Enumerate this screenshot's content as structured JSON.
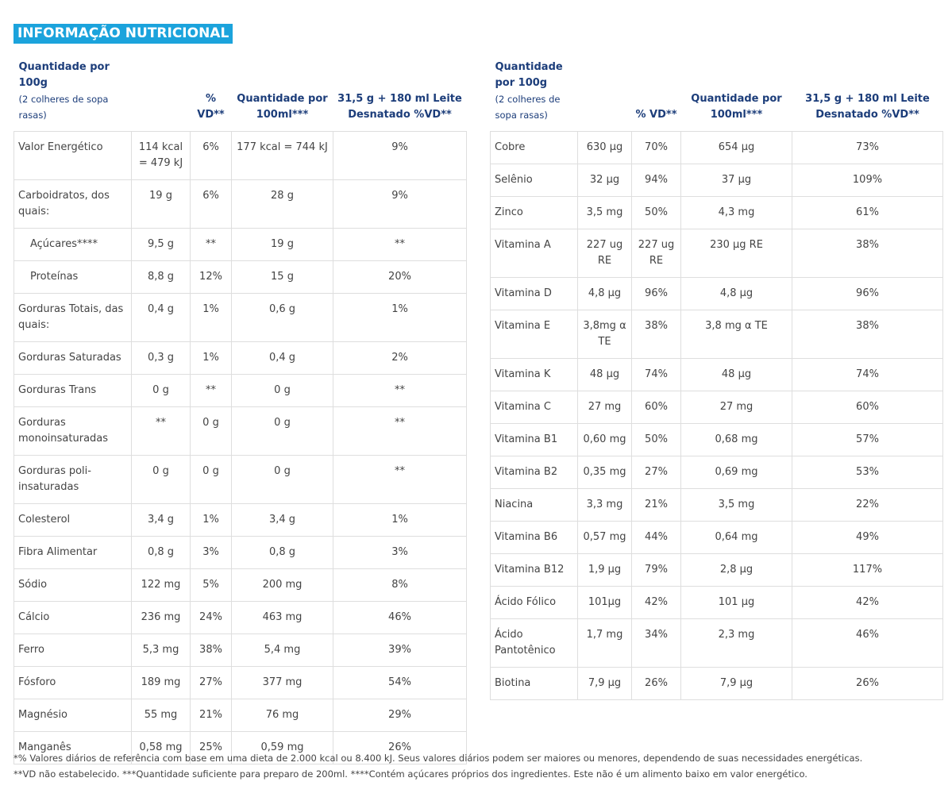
{
  "title": "INFORMAÇÃO NUTRICIONAL",
  "left_table": {
    "headers": {
      "qty": "Quantidade por 100g",
      "qty_sub": "(2 colheres de sopa rasas)",
      "vd": "% VD**",
      "per100ml": "Quantidade por 100ml***",
      "milk": "31,5 g + 180 ml Leite Desnatado %VD**"
    },
    "rows": [
      {
        "label": "Valor Energético",
        "qty": "114 kcal = 479 kJ",
        "vd": "6%",
        "per100ml": "177 kcal = 744 kJ",
        "milk": "9%",
        "indent": false
      },
      {
        "label": "Carboidratos, dos quais:",
        "qty": "19 g",
        "vd": "6%",
        "per100ml": "28 g",
        "milk": "9%",
        "indent": false
      },
      {
        "label": "Açúcares****",
        "qty": "9,5 g",
        "vd": "**",
        "per100ml": "19 g",
        "milk": "**",
        "indent": true
      },
      {
        "label": "Proteínas",
        "qty": "8,8 g",
        "vd": "12%",
        "per100ml": "15 g",
        "milk": "20%",
        "indent": true
      },
      {
        "label": "Gorduras Totais, das quais:",
        "qty": "0,4 g",
        "vd": "1%",
        "per100ml": "0,6 g",
        "milk": "1%",
        "indent": false
      },
      {
        "label": "Gorduras Saturadas",
        "qty": "0,3 g",
        "vd": "1%",
        "per100ml": "0,4 g",
        "milk": "2%",
        "indent": false
      },
      {
        "label": "Gorduras Trans",
        "qty": "0 g",
        "vd": "**",
        "per100ml": "0 g",
        "milk": "**",
        "indent": false
      },
      {
        "label": "Gorduras monoinsaturadas",
        "qty": "**",
        "vd": "0 g",
        "per100ml": "0 g",
        "milk": "**",
        "indent": false
      },
      {
        "label": "Gorduras poli-insaturadas",
        "qty": "0 g",
        "vd": "0 g",
        "per100ml": "0 g",
        "milk": "**",
        "indent": false
      },
      {
        "label": "Colesterol",
        "qty": "3,4 g",
        "vd": "1%",
        "per100ml": "3,4 g",
        "milk": "1%",
        "indent": false
      },
      {
        "label": "Fibra Alimentar",
        "qty": "0,8 g",
        "vd": "3%",
        "per100ml": "0,8 g",
        "milk": "3%",
        "indent": false
      },
      {
        "label": "Sódio",
        "qty": "122 mg",
        "vd": "5%",
        "per100ml": "200 mg",
        "milk": "8%",
        "indent": false
      },
      {
        "label": "Cálcio",
        "qty": "236 mg",
        "vd": "24%",
        "per100ml": "463 mg",
        "milk": "46%",
        "indent": false
      },
      {
        "label": "Ferro",
        "qty": "5,3 mg",
        "vd": "38%",
        "per100ml": "5,4 mg",
        "milk": "39%",
        "indent": false
      },
      {
        "label": "Fósforo",
        "qty": "189 mg",
        "vd": "27%",
        "per100ml": "377 mg",
        "milk": "54%",
        "indent": false
      },
      {
        "label": "Magnésio",
        "qty": "55 mg",
        "vd": "21%",
        "per100ml": "76 mg",
        "milk": "29%",
        "indent": false
      },
      {
        "label": "Manganês",
        "qty": "0,58 mg",
        "vd": "25%",
        "per100ml": "0,59 mg",
        "milk": "26%",
        "indent": false
      }
    ]
  },
  "right_table": {
    "headers": {
      "qty": "Quantidade por 100g",
      "qty_sub": "(2 colheres de sopa rasas)",
      "vd": "% VD**",
      "per100ml": "Quantidade por 100ml***",
      "milk": "31,5 g + 180 ml Leite Desnatado %VD**"
    },
    "rows": [
      {
        "label": "Cobre",
        "qty": "630 µg",
        "vd": "70%",
        "per100ml": "654 µg",
        "milk": "73%"
      },
      {
        "label": "Selênio",
        "qty": "32 µg",
        "vd": "94%",
        "per100ml": "37 µg",
        "milk": "109%"
      },
      {
        "label": "Zinco",
        "qty": "3,5 mg",
        "vd": "50%",
        "per100ml": "4,3 mg",
        "milk": "61%"
      },
      {
        "label": "Vitamina A",
        "qty": "227 ug RE",
        "vd": "227 ug RE",
        "per100ml": "230 µg RE",
        "milk": "38%"
      },
      {
        "label": "Vitamina D",
        "qty": "4,8 µg",
        "vd": "96%",
        "per100ml": "4,8 µg",
        "milk": "96%"
      },
      {
        "label": "Vitamina E",
        "qty": "3,8mg α TE",
        "vd": "38%",
        "per100ml": "3,8 mg α TE",
        "milk": "38%"
      },
      {
        "label": "Vitamina K",
        "qty": "48 µg",
        "vd": "74%",
        "per100ml": "48 µg",
        "milk": "74%"
      },
      {
        "label": "Vitamina C",
        "qty": "27 mg",
        "vd": "60%",
        "per100ml": "27 mg",
        "milk": "60%"
      },
      {
        "label": "Vitamina B1",
        "qty": "0,60 mg",
        "vd": "50%",
        "per100ml": "0,68 mg",
        "milk": "57%"
      },
      {
        "label": "Vitamina B2",
        "qty": "0,35 mg",
        "vd": "27%",
        "per100ml": "0,69 mg",
        "milk": "53%"
      },
      {
        "label": "Niacina",
        "qty": "3,3 mg",
        "vd": "21%",
        "per100ml": "3,5 mg",
        "milk": "22%"
      },
      {
        "label": "Vitamina B6",
        "qty": "0,57 mg",
        "vd": "44%",
        "per100ml": "0,64 mg",
        "milk": "49%"
      },
      {
        "label": "Vitamina B12",
        "qty": "1,9 µg",
        "vd": "79%",
        "per100ml": "2,8 µg",
        "milk": "117%"
      },
      {
        "label": "Ácido Fólico",
        "qty": "101µg",
        "vd": "42%",
        "per100ml": "101 µg",
        "milk": "42%"
      },
      {
        "label": "Ácido Pantotênico",
        "qty": "1,7 mg",
        "vd": "34%",
        "per100ml": "2,3 mg",
        "milk": "46%"
      },
      {
        "label": "Biotina",
        "qty": "7,9 µg",
        "vd": "26%",
        "per100ml": "7,9 µg",
        "milk": "26%"
      }
    ]
  },
  "footnotes": [
    "*% Valores diários de referência com base em uma dieta de 2.000 kcal ou 8.400 kJ. Seus valores diários podem ser maiores ou menores, dependendo de suas necessidades energéticas.",
    "**VD não estabelecido. ***Quantidade suficiente para preparo de 200ml. ****Contém açúcares próprios dos ingredientes. Este não é um alimento baixo em valor energético."
  ],
  "colors": {
    "title_background": "#1ba3dc",
    "header_text": "#1c3d7a",
    "grid_border": "#dedede"
  }
}
